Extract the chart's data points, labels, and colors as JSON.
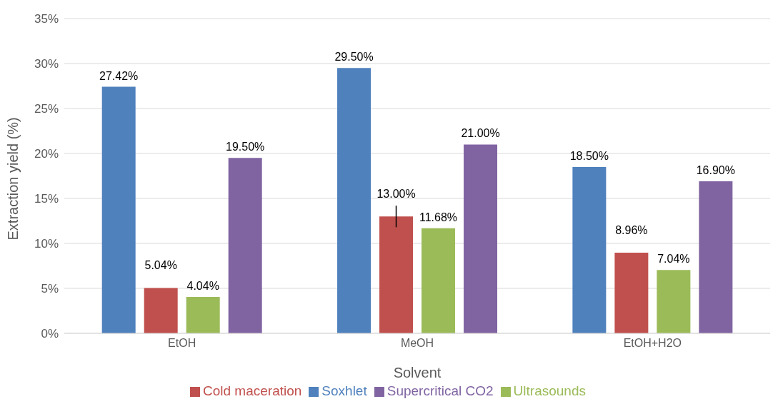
{
  "chart_data": {
    "type": "bar",
    "xlabel": "Solvent",
    "ylabel": "Extraction yield (%)",
    "categories": [
      "EtOH",
      "MeOH",
      "EtOH+H2O"
    ],
    "series": [
      {
        "name": "Soxhlet",
        "color": "#4f81bd",
        "values": [
          27.42,
          29.5,
          18.5
        ],
        "value_labels": [
          "27.42%",
          "29.50%",
          "18.50%"
        ]
      },
      {
        "name": "Cold maceration",
        "color": "#c0504d",
        "values": [
          5.04,
          13.0,
          8.96
        ],
        "value_labels": [
          "5.04%",
          "13.00%",
          "8.96%"
        ],
        "errors": [
          null,
          1.2,
          null
        ]
      },
      {
        "name": "Ultrasounds",
        "color": "#9bbb59",
        "values": [
          4.04,
          11.68,
          7.04
        ],
        "value_labels": [
          "4.04%",
          "11.68%",
          "7.04%"
        ]
      },
      {
        "name": "Supercritical CO2",
        "color": "#8064a2",
        "values": [
          19.5,
          21.0,
          16.9
        ],
        "value_labels": [
          "19.50%",
          "21.00%",
          "16.90%"
        ]
      }
    ],
    "ylim": [
      0,
      35
    ],
    "yticks": [
      {
        "value": 0,
        "label": "0%"
      },
      {
        "value": 5,
        "label": "5%"
      },
      {
        "value": 10,
        "label": "10%"
      },
      {
        "value": 15,
        "label": "15%"
      },
      {
        "value": 20,
        "label": "20%"
      },
      {
        "value": 25,
        "label": "25%"
      },
      {
        "value": 30,
        "label": "30%"
      },
      {
        "value": 35,
        "label": "35%"
      }
    ],
    "grid": "y",
    "legend": "bottom"
  }
}
